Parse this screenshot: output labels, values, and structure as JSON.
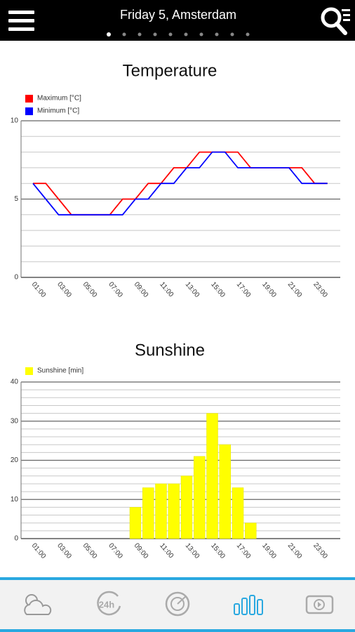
{
  "header": {
    "title": "Friday 5, Amsterdam"
  },
  "nav": {
    "items": [
      {
        "label": "24h"
      }
    ]
  },
  "chart_data": [
    {
      "type": "line",
      "title": "Temperature",
      "categories": [
        "01:00",
        null,
        "03:00",
        null,
        "05:00",
        null,
        "07:00",
        null,
        "09:00",
        null,
        "11:00",
        null,
        "13:00",
        null,
        "15:00",
        null,
        "17:00",
        null,
        "19:00",
        null,
        "21:00",
        null,
        "23:00",
        null
      ],
      "series": [
        {
          "name": "Maximum [°C]",
          "color": "#ff0000",
          "values": [
            6,
            6,
            5,
            4,
            4,
            4,
            4,
            5,
            5,
            6,
            6,
            7,
            7,
            8,
            8,
            8,
            8,
            7,
            7,
            7,
            7,
            7,
            6,
            6
          ]
        },
        {
          "name": "Minimum [°C]",
          "color": "#0000ff",
          "values": [
            6,
            5,
            4,
            4,
            4,
            4,
            4,
            4,
            5,
            5,
            6,
            6,
            7,
            7,
            8,
            8,
            7,
            7,
            7,
            7,
            7,
            6,
            6,
            6
          ]
        }
      ],
      "ylim": [
        0,
        10
      ],
      "yticks": [
        0,
        5,
        10
      ],
      "minor_yticks": [
        1,
        2,
        3,
        4,
        6,
        7,
        8,
        9
      ],
      "grid": true,
      "legend": "top-left"
    },
    {
      "type": "bar",
      "title": "Sunshine",
      "categories": [
        "01:00",
        null,
        "03:00",
        null,
        "05:00",
        null,
        "07:00",
        null,
        "09:00",
        null,
        "11:00",
        null,
        "13:00",
        null,
        "15:00",
        null,
        "17:00",
        null,
        "19:00",
        null,
        "21:00",
        null,
        "23:00",
        null
      ],
      "series": [
        {
          "name": "Sunshine [min]",
          "color": "#ffff00",
          "values": [
            0,
            0,
            0,
            0,
            0,
            0,
            0,
            0,
            8,
            13,
            14,
            14,
            16,
            21,
            32,
            24,
            13,
            4,
            0,
            0,
            0,
            0,
            0,
            0
          ]
        }
      ],
      "ylim": [
        0,
        40
      ],
      "yticks": [
        0,
        10,
        20,
        30,
        40
      ],
      "minor_yticks": [
        2,
        4,
        6,
        8,
        12,
        14,
        16,
        18,
        22,
        24,
        26,
        28,
        32,
        34,
        36,
        38
      ],
      "grid": true,
      "legend": "top-left"
    }
  ]
}
